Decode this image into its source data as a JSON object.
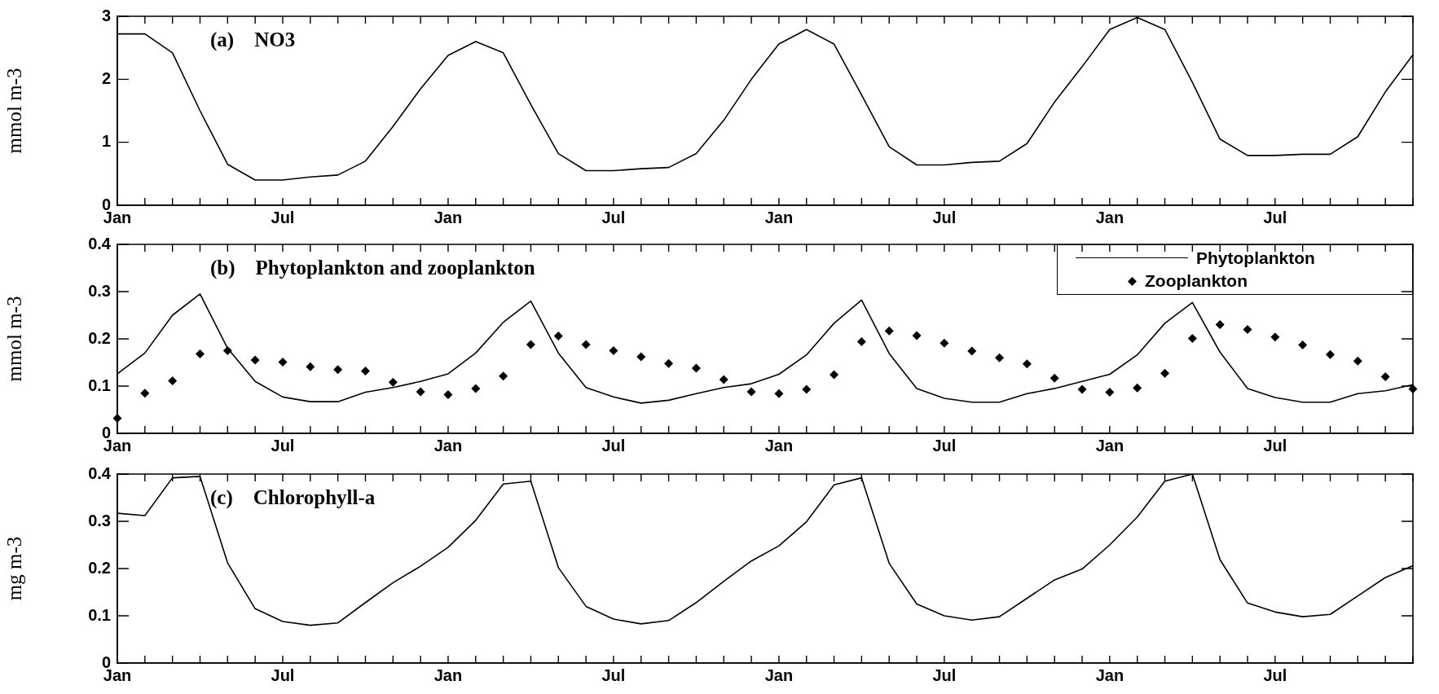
{
  "chart_data": [
    {
      "type": "line",
      "title": "(a)  NO3",
      "ylabel": "mmol m-3",
      "categories": [
        "Jan",
        null,
        null,
        null,
        null,
        null,
        "Jul",
        null,
        null,
        null,
        null,
        null,
        "Jan",
        null,
        null,
        null,
        null,
        null,
        "Jul",
        null,
        null,
        null,
        null,
        null,
        "Jan",
        null,
        null,
        null,
        null,
        null,
        "Jul",
        null,
        null,
        null,
        null,
        null,
        "Jan",
        null,
        null,
        null,
        null,
        null,
        "Jul",
        null,
        null,
        null,
        null,
        null
      ],
      "values": [
        2.72,
        2.72,
        2.42,
        1.5,
        0.65,
        0.4,
        0.4,
        0.45,
        0.48,
        0.7,
        1.25,
        1.85,
        2.38,
        2.6,
        2.42,
        1.6,
        0.82,
        0.55,
        0.55,
        0.58,
        0.6,
        0.82,
        1.35,
        2.0,
        2.56,
        2.79,
        2.56,
        1.75,
        0.93,
        0.64,
        0.64,
        0.68,
        0.7,
        0.98,
        1.64,
        2.2,
        2.79,
        2.98,
        2.79,
        1.95,
        1.05,
        0.79,
        0.79,
        0.81,
        0.81,
        1.09,
        1.8,
        2.39
      ],
      "color": "#000000",
      "marker": "none",
      "ylim": [
        0,
        3
      ],
      "yticks": [
        0,
        1,
        2,
        3
      ]
    },
    {
      "type": "line",
      "title": "(b)  Phytoplankton and zooplankton",
      "ylabel": "mmol m-3",
      "categories": [
        "Jan",
        null,
        null,
        null,
        null,
        null,
        "Jul",
        null,
        null,
        null,
        null,
        null,
        "Jan",
        null,
        null,
        null,
        null,
        null,
        "Jul",
        null,
        null,
        null,
        null,
        null,
        "Jan",
        null,
        null,
        null,
        null,
        null,
        "Jul",
        null,
        null,
        null,
        null,
        null,
        "Jan",
        null,
        null,
        null,
        null,
        null,
        "Jul",
        null,
        null,
        null,
        null,
        null
      ],
      "series": [
        {
          "name": "Phytoplankton",
          "type": "line",
          "marker": "none",
          "color": "#000000",
          "values": [
            0.126,
            0.17,
            0.25,
            0.295,
            0.18,
            0.11,
            0.077,
            0.067,
            0.067,
            0.087,
            0.097,
            0.11,
            0.126,
            0.17,
            0.235,
            0.28,
            0.17,
            0.097,
            0.077,
            0.064,
            0.07,
            0.084,
            0.097,
            0.105,
            0.125,
            0.166,
            0.233,
            0.282,
            0.169,
            0.095,
            0.074,
            0.066,
            0.066,
            0.084,
            0.095,
            0.11,
            0.125,
            0.166,
            0.233,
            0.277,
            0.172,
            0.095,
            0.076,
            0.066,
            0.066,
            0.084,
            0.09,
            0.103
          ]
        },
        {
          "name": "Zooplankton",
          "type": "scatter",
          "marker": "diamond",
          "color": "#000000",
          "values": [
            0.032,
            0.085,
            0.111,
            0.168,
            0.175,
            0.155,
            0.151,
            0.141,
            0.135,
            0.132,
            0.108,
            0.088,
            0.082,
            0.095,
            0.121,
            0.188,
            0.206,
            0.188,
            0.175,
            0.162,
            0.148,
            0.138,
            0.114,
            0.088,
            0.084,
            0.093,
            0.124,
            0.194,
            0.217,
            0.207,
            0.191,
            0.174,
            0.16,
            0.147,
            0.117,
            0.093,
            0.087,
            0.096,
            0.127,
            0.201,
            0.23,
            0.22,
            0.204,
            0.187,
            0.167,
            0.153,
            0.12,
            0.094
          ]
        }
      ],
      "legend": "top right",
      "ylim": [
        0,
        0.4
      ],
      "yticks": [
        0,
        0.1,
        0.2,
        0.3,
        0.4
      ]
    },
    {
      "type": "line",
      "title": "(c)  Chlorophyll-a",
      "ylabel": "mg m-3",
      "categories": [
        "Jan",
        null,
        null,
        null,
        null,
        null,
        "Jul",
        null,
        null,
        null,
        null,
        null,
        "Jan",
        null,
        null,
        null,
        null,
        null,
        "Jul",
        null,
        null,
        null,
        null,
        null,
        "Jan",
        null,
        null,
        null,
        null,
        null,
        "Jul",
        null,
        null,
        null,
        null,
        null,
        "Jan",
        null,
        null,
        null,
        null,
        null,
        "Jul",
        null,
        null,
        null,
        null,
        null
      ],
      "values": [
        0.317,
        0.312,
        0.392,
        0.395,
        0.212,
        0.115,
        0.088,
        0.08,
        0.085,
        0.128,
        0.17,
        0.205,
        0.245,
        0.302,
        0.379,
        0.385,
        0.202,
        0.12,
        0.093,
        0.083,
        0.09,
        0.128,
        0.173,
        0.216,
        0.248,
        0.299,
        0.377,
        0.392,
        0.211,
        0.125,
        0.1,
        0.091,
        0.098,
        0.137,
        0.176,
        0.199,
        0.25,
        0.309,
        0.385,
        0.4,
        0.219,
        0.127,
        0.108,
        0.098,
        0.103,
        0.142,
        0.181,
        0.206
      ],
      "color": "#000000",
      "marker": "none",
      "ylim": [
        0,
        0.4
      ],
      "yticks": [
        0,
        0.1,
        0.2,
        0.3,
        0.4
      ]
    }
  ]
}
